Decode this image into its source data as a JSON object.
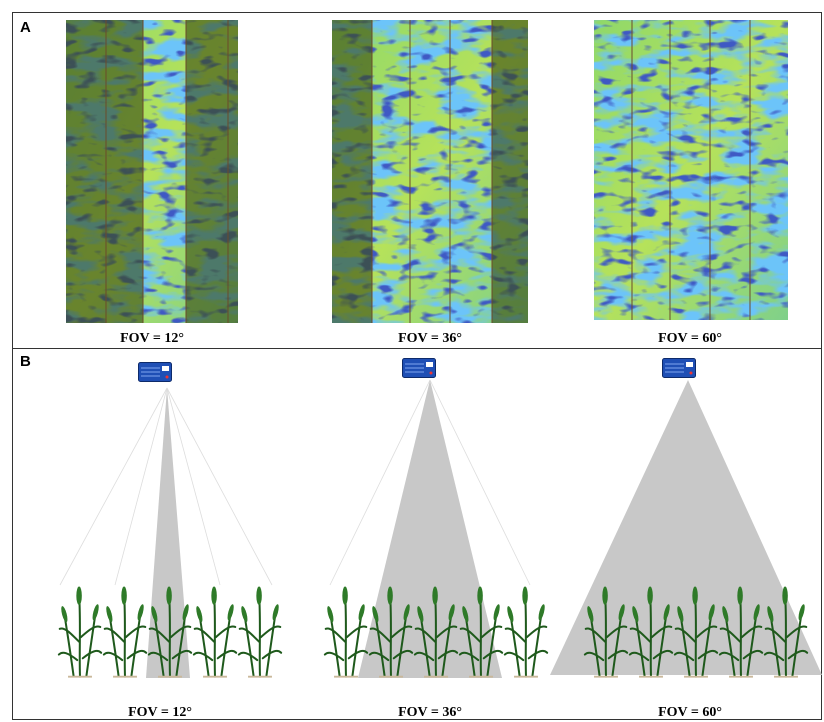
{
  "panels": [
    {
      "label": "A",
      "captions": [
        "FOV = 12°",
        "FOV = 36°",
        "FOV = 60°"
      ]
    },
    {
      "label": "B",
      "captions": [
        "FOV = 12°",
        "FOV = 36°",
        "FOV = 60°"
      ]
    }
  ]
}
